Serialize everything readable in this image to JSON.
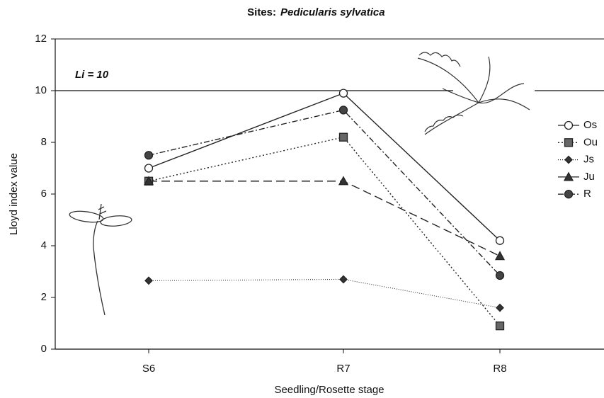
{
  "chart_data": {
    "type": "line",
    "title": {
      "prefix": "Sites:",
      "species": "Pedicularis sylvatica"
    },
    "x_label": "Seedling/Rosette stage",
    "y_label": "Lloyd index value",
    "categories": [
      "S6",
      "R7",
      "R8"
    ],
    "ylim": [
      0,
      12
    ],
    "yticks": [
      0,
      2,
      4,
      6,
      8,
      10,
      12
    ],
    "reference_line": {
      "value": 10,
      "label": "Li = 10"
    },
    "legend": "right",
    "series": [
      {
        "name": "Os",
        "color": "#222222",
        "marker": "circle-open",
        "dash": "none",
        "values": [
          7.0,
          9.9,
          4.2
        ]
      },
      {
        "name": "Ou",
        "color": "#222222",
        "marker": "square",
        "dash": "2,3",
        "values": [
          6.5,
          8.2,
          0.9
        ]
      },
      {
        "name": "Js",
        "color": "#222222",
        "marker": "diamond",
        "dash": "1,2",
        "values": [
          2.65,
          2.7,
          1.6
        ]
      },
      {
        "name": "Ju",
        "color": "#222222",
        "marker": "triangle",
        "dash": "12,6",
        "values": [
          6.5,
          6.5,
          3.6
        ]
      },
      {
        "name": "R",
        "color": "#222222",
        "marker": "circle",
        "dash": "8,3,2,3",
        "values": [
          7.5,
          9.25,
          2.85
        ]
      }
    ]
  }
}
